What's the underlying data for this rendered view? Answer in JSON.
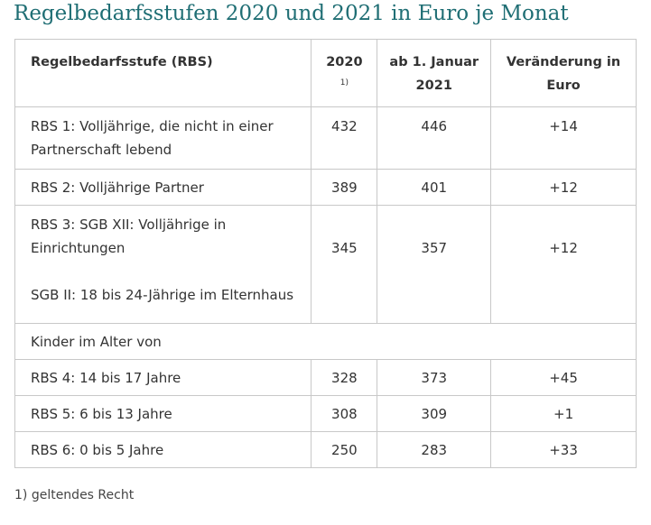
{
  "title": "Regelbedarfsstufen 2020 und 2021 in Euro je Monat",
  "table": {
    "headers": {
      "col1": "Regelbedarfsstufe (RBS)",
      "col2": "2020",
      "col2_note": "1)",
      "col3": "ab 1. Januar 2021",
      "col4": "Veränderung in Euro"
    },
    "rows": [
      {
        "label": "RBS 1: Volljährige, die nicht in einer Partnerschaft lebend",
        "v2020": "432",
        "v2021": "446",
        "change": "+14"
      },
      {
        "label": "RBS 2: Volljährige Partner",
        "v2020": "389",
        "v2021": "401",
        "change": "+12"
      },
      {
        "label": "RBS 3: SGB XII: Volljährige in Einrichtungen",
        "label_extra": "SGB II: 18 bis 24-Jährige im Elternhaus",
        "v2020": "345",
        "v2021": "357",
        "change": "+12"
      },
      {
        "section": "Kinder im Alter von"
      },
      {
        "label": "RBS 4: 14 bis 17 Jahre",
        "v2020": "328",
        "v2021": "373",
        "change": "+45"
      },
      {
        "label": "RBS 5: 6 bis 13 Jahre",
        "v2020": "308",
        "v2021": "309",
        "change": "+1"
      },
      {
        "label": "RBS 6: 0 bis 5 Jahre",
        "v2020": "250",
        "v2021": "283",
        "change": "+33"
      }
    ]
  },
  "footnote": "1) geltendes Recht",
  "colors": {
    "title": "#1f6e74",
    "border": "#c8c8c8",
    "text": "#333333"
  }
}
